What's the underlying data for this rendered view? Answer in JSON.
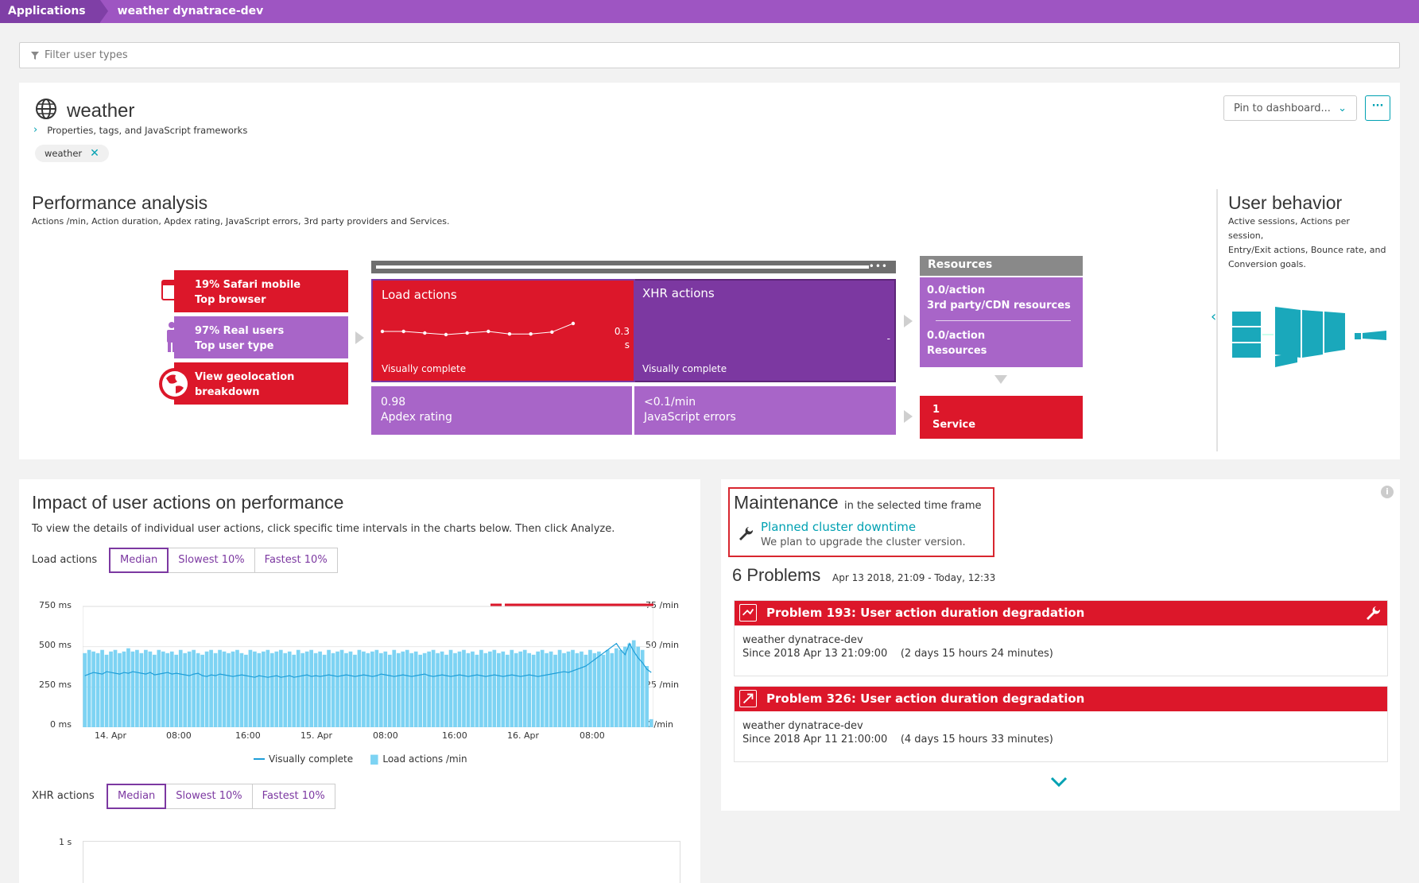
{
  "breadcrumb": {
    "item1": "Applications",
    "item2": "weather dynatrace-dev"
  },
  "filter": {
    "placeholder": "Filter user types"
  },
  "app": {
    "name": "weather",
    "properties_link": "Properties, tags, and JavaScript frameworks",
    "tag": "weather",
    "pin_label": "Pin to dashboard...",
    "more_label": "···"
  },
  "performance": {
    "title": "Performance analysis",
    "subtitle": "Actions /min, Action duration, Apdex rating, JavaScript errors, 3rd party providers and Services.",
    "browser": {
      "line1": "19% Safari mobile",
      "line2": "Top browser"
    },
    "users": {
      "line1": "97% Real users",
      "line2": "Top user type"
    },
    "geo": {
      "line1": "View geolocation breakdown"
    },
    "load_actions": {
      "title": "Load actions",
      "value": "0.3",
      "unit": "s",
      "footer": "Visually complete",
      "trend": [
        0.5,
        0.5,
        0.45,
        0.4,
        0.45,
        0.5,
        0.42,
        0.42,
        0.48,
        0.75
      ]
    },
    "xhr_actions": {
      "title": "XHR actions",
      "value": "-",
      "footer": "Visually complete"
    },
    "apdex": {
      "value": "0.98",
      "label": "Apdex rating"
    },
    "js_errors": {
      "value": "<0.1/min",
      "label": "JavaScript errors"
    },
    "resources": {
      "title": "Resources",
      "third_party": {
        "value": "0.0/action",
        "label": "3rd party/CDN resources"
      },
      "own": {
        "value": "0.0/action",
        "label": "Resources"
      }
    },
    "service": {
      "value": "1",
      "label": "Service"
    },
    "browser_dots": "•••"
  },
  "user_behavior": {
    "title": "User behavior",
    "subtitle_lines": [
      "Active sessions, Actions per session,",
      "Entry/Exit actions, Bounce rate, and",
      "Conversion goals."
    ]
  },
  "impact": {
    "title": "Impact of user actions on performance",
    "description": "To view the details of individual user actions, click specific time intervals in the charts below. Then click Analyze.",
    "load_label": "Load actions",
    "xhr_label": "XHR actions",
    "buttons": [
      "Median",
      "Slowest 10%",
      "Fastest 10%"
    ],
    "legend": {
      "line": "Visually complete",
      "bars": "Load actions /min"
    }
  },
  "chart_data": [
    {
      "type": "bar",
      "title": "",
      "y_left_ticks": [
        "750 ms",
        "500 ms",
        "250 ms",
        "0 ms"
      ],
      "y_right_ticks": [
        "75 /min",
        "50 /min",
        "25 /min",
        "0 /min"
      ],
      "x_ticks": [
        "14. Apr",
        "08:00",
        "16:00",
        "15. Apr",
        "08:00",
        "16:00",
        "16. Apr",
        "08:00"
      ],
      "ylim_left": [
        0,
        750
      ],
      "ylim_right": [
        0,
        75
      ],
      "series": [
        {
          "name": "Load actions /min",
          "type": "bar",
          "values": [
            46,
            48,
            47,
            46,
            48,
            45,
            47,
            48,
            46,
            47,
            49,
            47,
            48,
            46,
            48,
            47,
            45,
            48,
            47,
            46,
            47,
            45,
            48,
            46,
            47,
            48,
            46,
            45,
            47,
            48,
            46,
            48,
            47,
            46,
            47,
            48,
            46,
            45,
            48,
            47,
            46,
            47,
            48,
            46,
            47,
            48,
            46,
            47,
            45,
            48,
            46,
            47,
            48,
            46,
            47,
            45,
            48,
            46,
            47,
            48,
            46,
            47,
            45,
            48,
            47,
            46,
            47,
            48,
            46,
            47,
            45,
            48,
            46,
            47,
            48,
            46,
            47,
            45,
            46,
            47,
            48,
            46,
            47,
            45,
            48,
            46,
            47,
            48,
            46,
            47,
            45,
            48,
            46,
            47,
            48,
            46,
            47,
            45,
            48,
            46,
            47,
            48,
            46,
            45,
            47,
            48,
            46,
            47,
            45,
            48,
            46,
            47,
            48,
            46,
            47,
            45,
            48,
            46,
            47,
            45,
            48,
            46,
            49,
            48,
            50,
            52,
            54,
            50,
            48,
            38,
            5
          ]
        },
        {
          "name": "Visually complete",
          "type": "line",
          "values": [
            320,
            330,
            340,
            335,
            330,
            345,
            340,
            335,
            330,
            340,
            335,
            345,
            340,
            335,
            330,
            340,
            325,
            330,
            335,
            340,
            330,
            335,
            330,
            325,
            320,
            330,
            335,
            320,
            315,
            325,
            320,
            330,
            325,
            320,
            315,
            320,
            325,
            320,
            315,
            310,
            320,
            315,
            310,
            315,
            320,
            310,
            315,
            320,
            310,
            315,
            320,
            325,
            315,
            320,
            315,
            320,
            325,
            320,
            315,
            320,
            325,
            320,
            315,
            320,
            325,
            320,
            315,
            320,
            330,
            325,
            320,
            315,
            320,
            325,
            320,
            315,
            320,
            325,
            330,
            320,
            315,
            320,
            325,
            320,
            315,
            320,
            325,
            320,
            315,
            320,
            325,
            320,
            315,
            320,
            325,
            320,
            315,
            320,
            325,
            320,
            315,
            320,
            325,
            320,
            315,
            320,
            325,
            330,
            335,
            340,
            345,
            340,
            350,
            360,
            370,
            380,
            400,
            420,
            440,
            460,
            480,
            500,
            520,
            480,
            450,
            520,
            470,
            430,
            400,
            360,
            340
          ]
        }
      ],
      "threshold_line_right_segment": 125
    },
    {
      "type": "bar",
      "title": "",
      "y_left_ticks": [
        "1 s"
      ],
      "series": []
    }
  ],
  "maintenance": {
    "title": "Maintenance",
    "subtitle": "in the selected time frame",
    "link": "Planned cluster downtime",
    "text": "We plan to upgrade the cluster version."
  },
  "problems": {
    "count_label": "6 Problems",
    "range": "Apr 13 2018, 21:09 - Today, 12:33",
    "items": [
      {
        "title": "Problem 193: User action duration degradation",
        "app": "weather dynatrace-dev",
        "since": "Since 2018 Apr 13 21:09:00",
        "duration": "(2 days 15 hours 24 minutes)"
      },
      {
        "title": "Problem 326: User action duration degradation",
        "app": "weather dynatrace-dev",
        "since": "Since 2018 Apr 11 21:00:00",
        "duration": "(4 days 15 hours 33 minutes)"
      }
    ]
  },
  "colors": {
    "brand_purple": "#9e55c2",
    "red": "#dc172a",
    "purple": "#a865c8",
    "dark_purple": "#7c38a1",
    "teal": "#00a1b2",
    "bar_blue": "#7dd3f3"
  },
  "info_icon_label": "i"
}
